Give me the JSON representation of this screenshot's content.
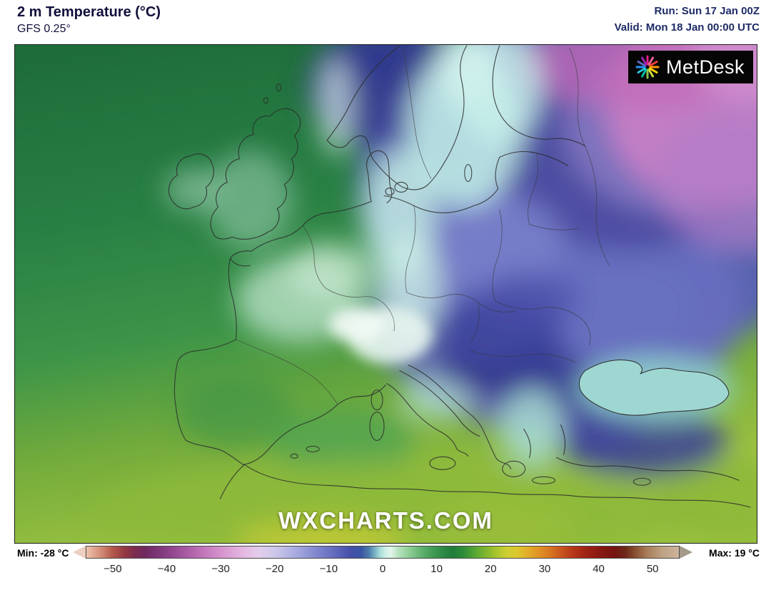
{
  "header": {
    "title": "2 m Temperature (°C)",
    "model": "GFS 0.25°",
    "run": "Run: Sun 17 Jan 00Z",
    "valid": "Valid: Mon 18 Jan 00:00 UTC"
  },
  "map": {
    "watermark": "WXCHARTS.COM",
    "logo": {
      "text": "MetDesk",
      "ray_colors": [
        "#e91e8c",
        "#f06292",
        "#f44336",
        "#ff9800",
        "#ffd600",
        "#cddc39",
        "#8bc34a",
        "#00bfa5",
        "#26c6da",
        "#2196f3",
        "#5c6bc0",
        "#9c27b0"
      ]
    }
  },
  "legend": {
    "min_label": "Min: -28 °C",
    "max_label": "Max: 19 °C",
    "unit": "°C",
    "range": [
      -55,
      55
    ],
    "ticks": [
      {
        "value": -50,
        "label": "−50"
      },
      {
        "value": -40,
        "label": "−40"
      },
      {
        "value": -30,
        "label": "−30"
      },
      {
        "value": -20,
        "label": "−20"
      },
      {
        "value": -10,
        "label": "−10"
      },
      {
        "value": 0,
        "label": "0"
      },
      {
        "value": 10,
        "label": "10"
      },
      {
        "value": 20,
        "label": "20"
      },
      {
        "value": 30,
        "label": "30"
      },
      {
        "value": 40,
        "label": "40"
      },
      {
        "value": 50,
        "label": "50"
      }
    ],
    "colorbar_stops": [
      {
        "value": -55,
        "color": "#eec3ac"
      },
      {
        "value": -52,
        "color": "#cf8670"
      },
      {
        "value": -50,
        "color": "#b25549"
      },
      {
        "value": -48,
        "color": "#953a44"
      },
      {
        "value": -46,
        "color": "#7c2c4e"
      },
      {
        "value": -44,
        "color": "#6f2a60"
      },
      {
        "value": -41,
        "color": "#823a7e"
      },
      {
        "value": -38,
        "color": "#9c4e98"
      },
      {
        "value": -35,
        "color": "#b566ae"
      },
      {
        "value": -32,
        "color": "#ca82c2"
      },
      {
        "value": -29,
        "color": "#d99cd2"
      },
      {
        "value": -26,
        "color": "#e5b6e0"
      },
      {
        "value": -23,
        "color": "#e3cdec"
      },
      {
        "value": -20,
        "color": "#cdc8ea"
      },
      {
        "value": -17,
        "color": "#b1b2e2"
      },
      {
        "value": -14,
        "color": "#9297d6"
      },
      {
        "value": -11,
        "color": "#747cc8"
      },
      {
        "value": -8,
        "color": "#5a62b8"
      },
      {
        "value": -6,
        "color": "#4550aa"
      },
      {
        "value": -4,
        "color": "#3a55a2"
      },
      {
        "value": -2.5,
        "color": "#4f7fae"
      },
      {
        "value": -1.5,
        "color": "#77aec4"
      },
      {
        "value": -0.5,
        "color": "#a7dcd8"
      },
      {
        "value": 0.5,
        "color": "#cdefe7"
      },
      {
        "value": 1.5,
        "color": "#e2f5ec"
      },
      {
        "value": 3,
        "color": "#b4e2bc"
      },
      {
        "value": 5,
        "color": "#8ccd96"
      },
      {
        "value": 7,
        "color": "#63b472"
      },
      {
        "value": 9,
        "color": "#459e58"
      },
      {
        "value": 11,
        "color": "#2f8c46"
      },
      {
        "value": 13,
        "color": "#217c3a"
      },
      {
        "value": 15,
        "color": "#2f8c38"
      },
      {
        "value": 17,
        "color": "#55a434"
      },
      {
        "value": 19,
        "color": "#7cb430"
      },
      {
        "value": 21,
        "color": "#a6c42e"
      },
      {
        "value": 23,
        "color": "#cdd032"
      },
      {
        "value": 25,
        "color": "#ddc72e"
      },
      {
        "value": 27,
        "color": "#e2ad2a"
      },
      {
        "value": 29,
        "color": "#e29226"
      },
      {
        "value": 31,
        "color": "#d97722"
      },
      {
        "value": 33,
        "color": "#cb581e"
      },
      {
        "value": 35,
        "color": "#ba3c1a"
      },
      {
        "value": 37,
        "color": "#a62816"
      },
      {
        "value": 40,
        "color": "#8d1812"
      },
      {
        "value": 43,
        "color": "#741310"
      },
      {
        "value": 45,
        "color": "#6e2818"
      },
      {
        "value": 47,
        "color": "#8a5234"
      },
      {
        "value": 49,
        "color": "#a87c58"
      },
      {
        "value": 52,
        "color": "#bfa284"
      },
      {
        "value": 55,
        "color": "#ccb49c"
      }
    ]
  },
  "chart_data": {
    "type": "heatmap",
    "title": "2 m Temperature (°C)",
    "model": "GFS 0.25°",
    "run": "Sun 17 Jan 00Z",
    "valid": "Mon 18 Jan 00:00 UTC",
    "region": "Europe",
    "min_c": -28,
    "max_c": 19,
    "colorbar_ticks": [
      -50,
      -40,
      -30,
      -20,
      -10,
      0,
      10,
      20,
      30,
      40,
      50
    ],
    "pattern_summary": "Greens (mild 0–15°C) over Atlantic, UK, France, Iberia and NW Africa; pale cyan near-0°C band through Denmark, Germany, Alps, Adriatic, Aegean and Black Sea; blues and purples (-5 to -20°C) over Scandinavia, Poland, Balkans, Ukraine and Russia; magenta/pink (below -20°C) over far northeastern Russia."
  }
}
